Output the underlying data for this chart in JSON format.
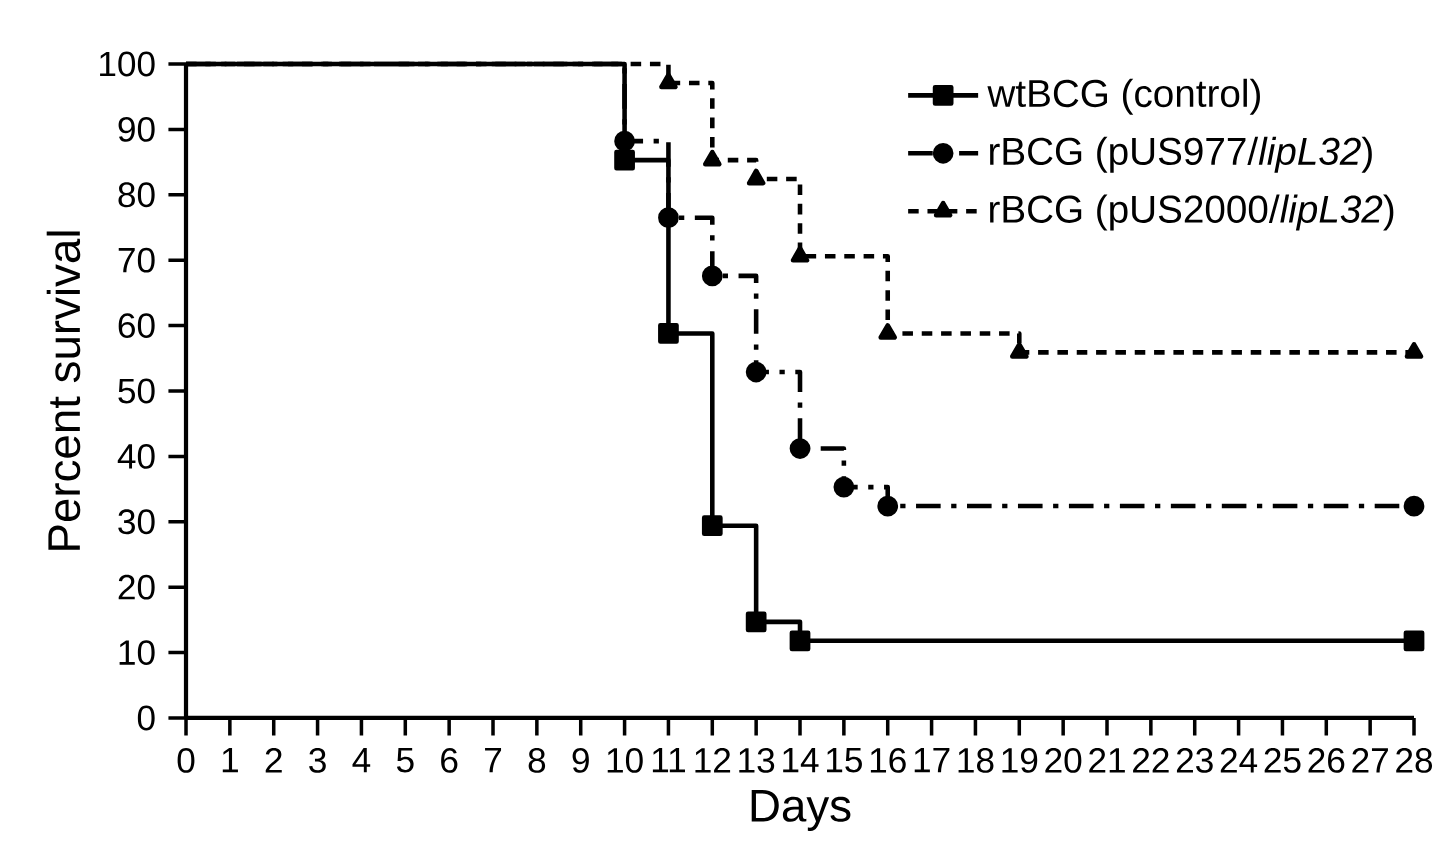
{
  "chart_data": {
    "type": "step",
    "xlabel": "Days",
    "ylabel": "Percent survival",
    "xlim": [
      0,
      28
    ],
    "ylim": [
      0,
      100
    ],
    "xticks": [
      0,
      1,
      2,
      3,
      4,
      5,
      6,
      7,
      8,
      9,
      10,
      11,
      12,
      13,
      14,
      15,
      16,
      17,
      18,
      19,
      20,
      21,
      22,
      23,
      24,
      25,
      26,
      27,
      28
    ],
    "yticks": [
      0,
      10,
      20,
      30,
      40,
      50,
      60,
      70,
      80,
      90,
      100
    ],
    "grid": false,
    "legend": "top right",
    "series": [
      {
        "name": "wtBCG (control)",
        "color": "#000000",
        "marker": "square",
        "line_style": "solid",
        "x": [
          0,
          10,
          11,
          12,
          13,
          14,
          28
        ],
        "values": [
          100,
          85.3,
          58.8,
          29.4,
          14.7,
          11.8,
          11.8
        ]
      },
      {
        "name": "rBCG (pUS977/*lipL32*)",
        "color": "#000000",
        "marker": "circle",
        "line_style": "dashed",
        "x": [
          0,
          10,
          11,
          12,
          13,
          14,
          15,
          16,
          28
        ],
        "values": [
          100,
          88.2,
          76.5,
          67.6,
          52.9,
          41.2,
          35.3,
          32.4,
          32.4
        ]
      },
      {
        "name": "rBCG (pUS2000/*lipL32*)",
        "color": "#000000",
        "marker": "triangle",
        "line_style": "dotted",
        "x": [
          0,
          11,
          12,
          13,
          14,
          16,
          19,
          28
        ],
        "values": [
          100,
          97.1,
          85.3,
          82.4,
          70.6,
          58.8,
          55.9,
          55.9
        ]
      }
    ]
  }
}
